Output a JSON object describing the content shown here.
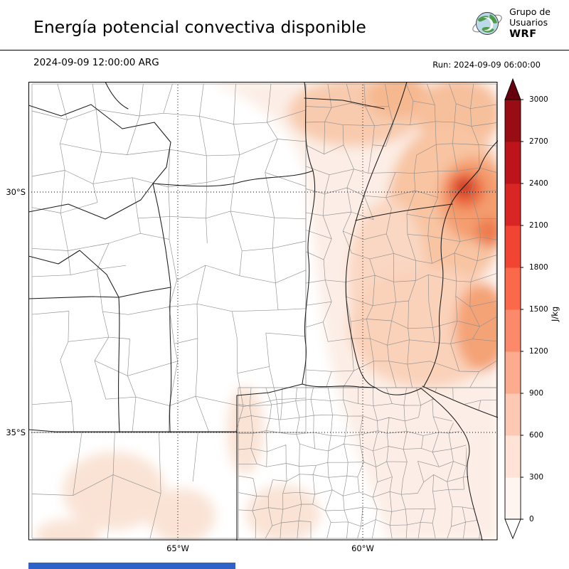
{
  "header": {
    "title": "Energía potencial convectiva disponible",
    "valid_time": "2024-09-09 12:00:00 ARG",
    "run_time": "Run: 2024-09-09 06:00:00"
  },
  "logo": {
    "line1": "Grupo de",
    "line2": "Usuarios",
    "line3": "WRF"
  },
  "map_axes": {
    "lat_labels": [
      "30°S",
      "35°S"
    ],
    "lon_labels": [
      "65°W",
      "60°W"
    ]
  },
  "colorbar": {
    "units_label": "J/kg",
    "tick_labels": [
      "3000",
      "2700",
      "2400",
      "2100",
      "1800",
      "1500",
      "1200",
      "900",
      "600",
      "300",
      "0"
    ],
    "segment_colors_bottom_to_top": [
      "#fff5f0",
      "#fee3d6",
      "#fdc9b4",
      "#fcab8f",
      "#fc8a6a",
      "#fb694a",
      "#f14432",
      "#d92523",
      "#bc141a",
      "#980c13"
    ],
    "over_color": "#67000d",
    "under_color": "#ffffff"
  },
  "footer": {
    "bar_color": "#2e62c9"
  },
  "chart_data": {
    "type": "heatmap",
    "field": "CAPE (convective available potential energy)",
    "units": "J/kg",
    "value_range": [
      0,
      3000
    ],
    "contour_interval": 300,
    "lat_gridlines_deg_s": [
      30,
      35
    ],
    "lon_gridlines_deg_w": [
      65,
      60
    ],
    "summary": [
      {
        "region": "western half of domain (Andes side, ~69-63°W)",
        "cape_jkg": 0
      },
      {
        "region": "north-center of domain near 61°W 28°S",
        "cape_jkg": "300-600"
      },
      {
        "region": "broad northeast (Santa Fe / Entre Ríos / Corrientes)",
        "cape_jkg": "300-900"
      },
      {
        "region": "maximum core near 58°W 30°S",
        "cape_jkg": "2100-2400"
      },
      {
        "region": "secondary maxima near 57°W 31°S and 57°W 33°S",
        "cape_jkg": "900-1200"
      },
      {
        "region": "scattered light patches southwest near 66.5°W 36°S",
        "cape_jkg": "0-300"
      }
    ]
  }
}
